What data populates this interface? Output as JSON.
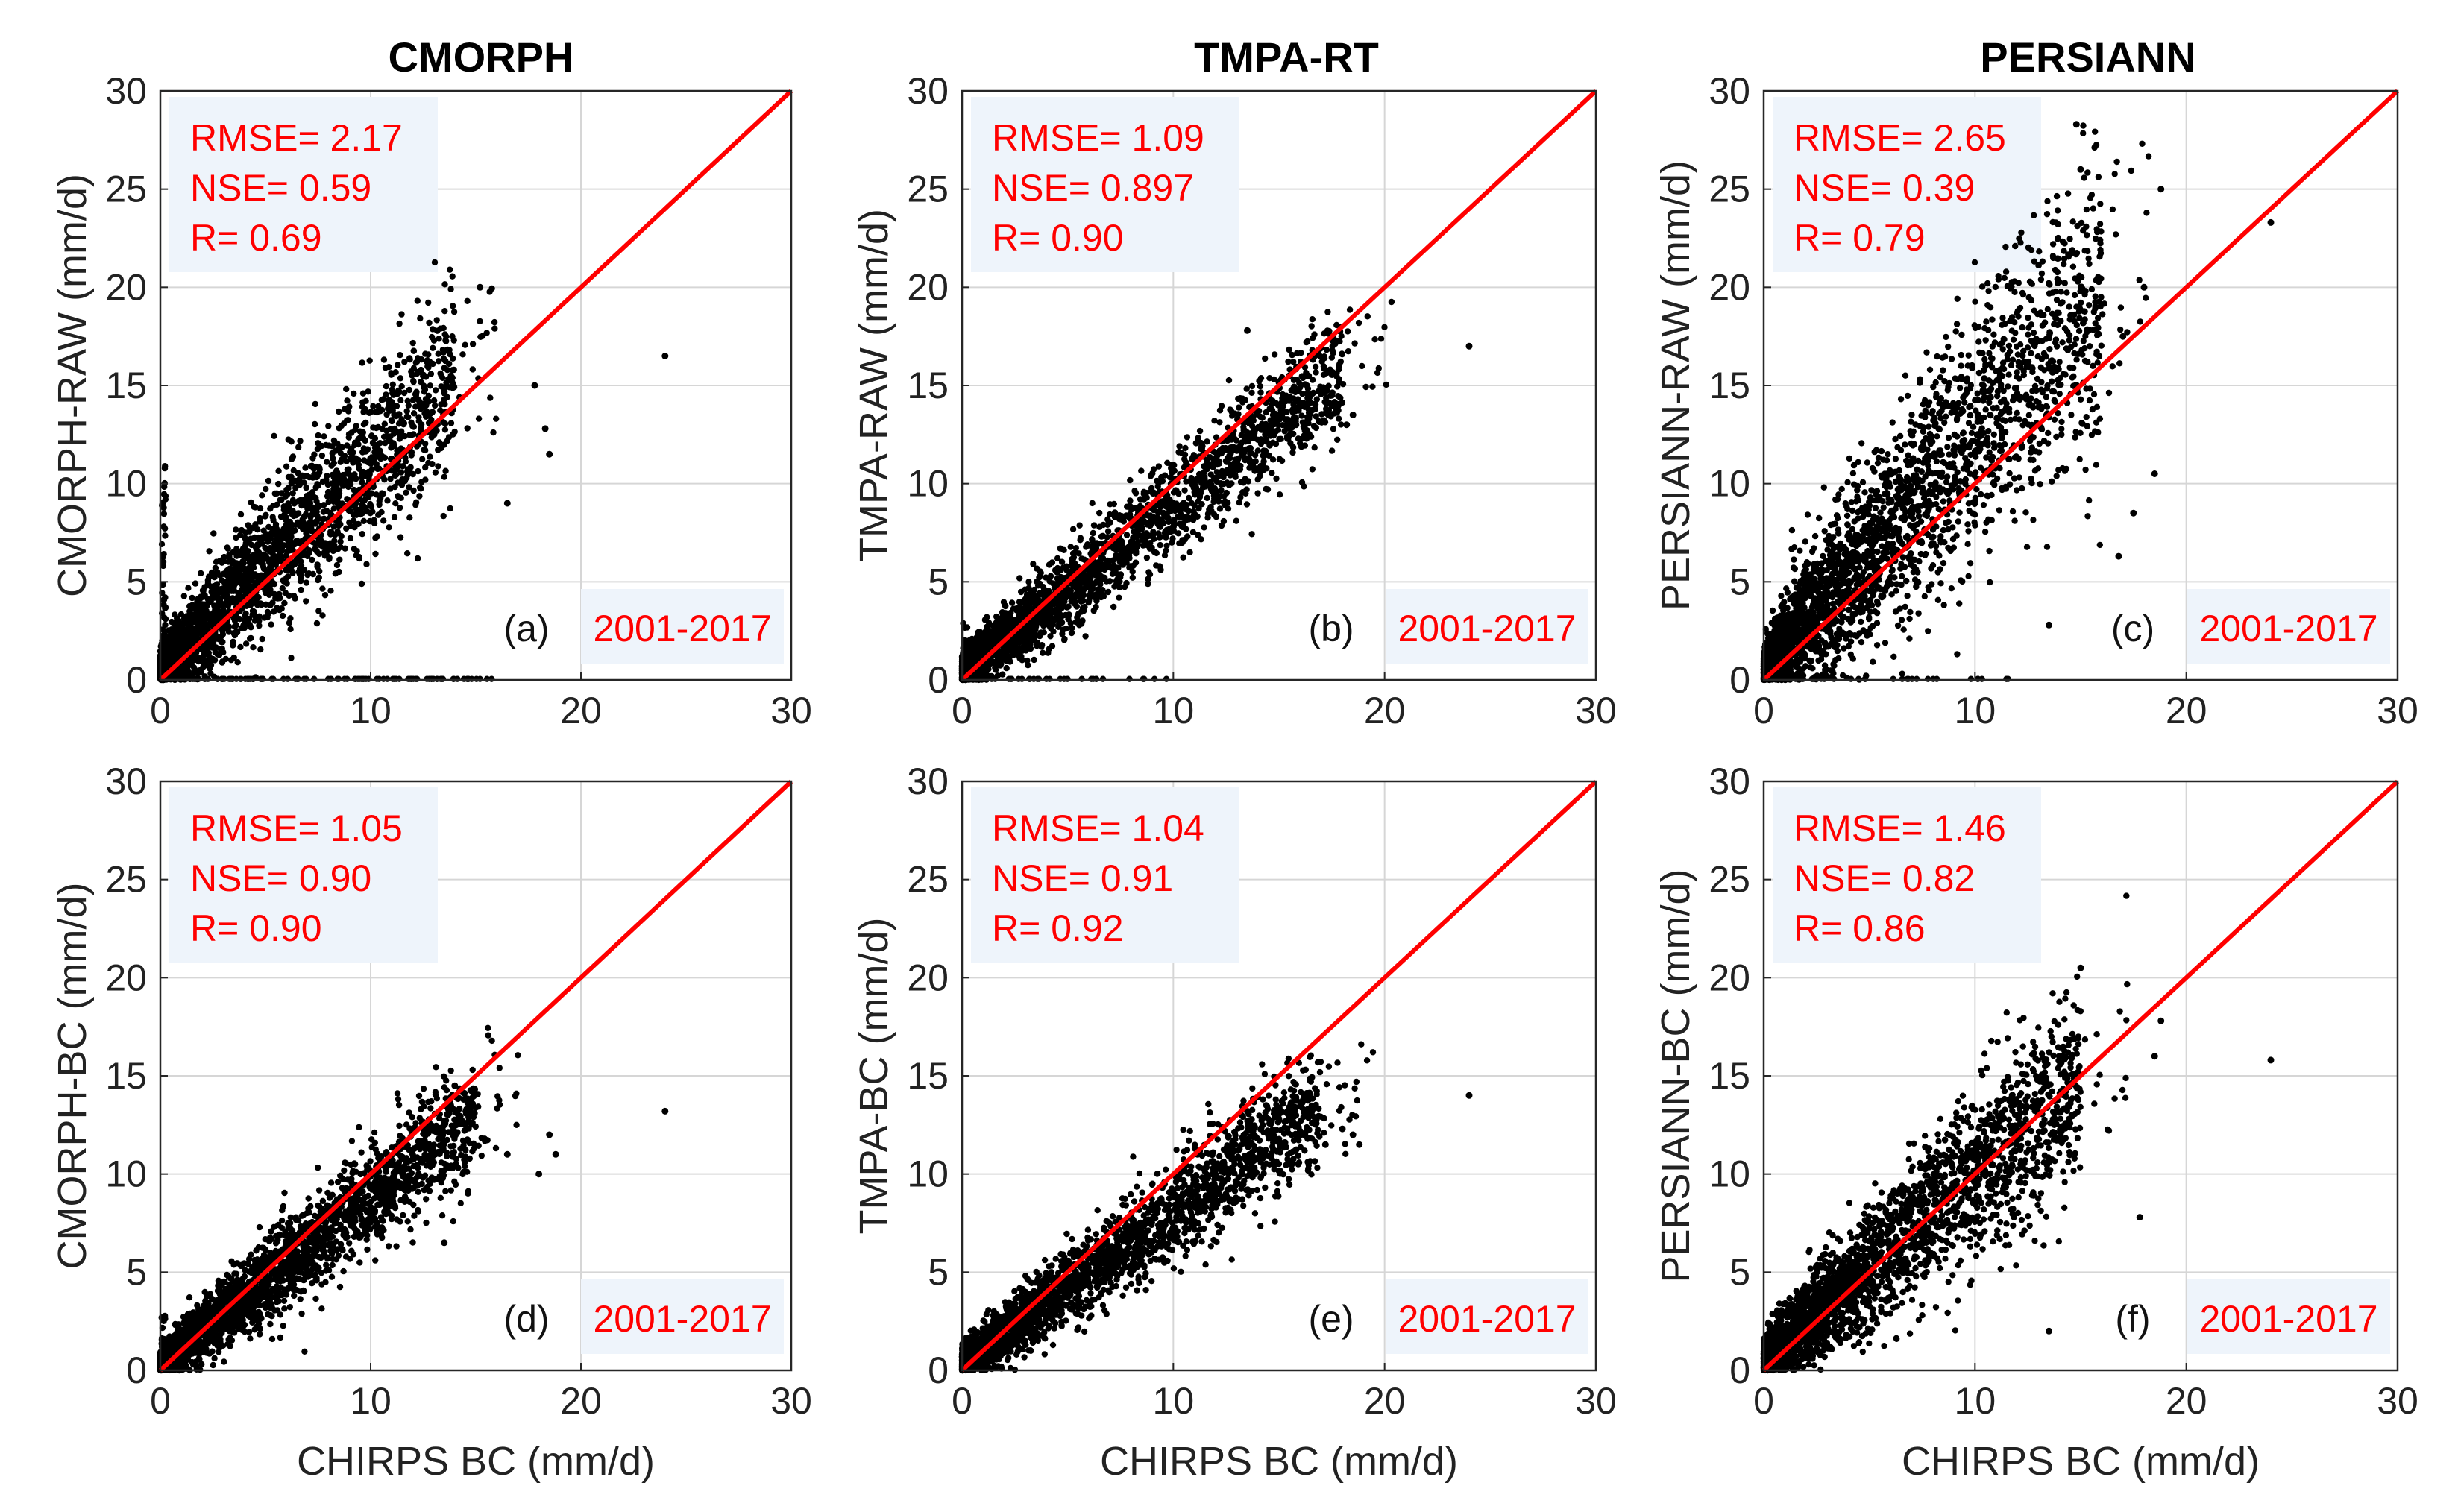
{
  "figure": {
    "columns": [
      "CMORPH",
      "TMPA-RT",
      "PERSIANN"
    ]
  },
  "colors": {
    "points": "#000000",
    "one_to_one": "#ff0000",
    "stats_text": "#ff0000",
    "stats_box": "#eef4fb",
    "grid": "#d6d6d6"
  },
  "chart_data": [
    {
      "type": "scatter",
      "panel": "(a)",
      "column_title": "CMORPH",
      "xlabel": "",
      "ylabel": "CMORPH-RAW (mm/d)",
      "xlim": [
        0,
        30
      ],
      "ylim": [
        0,
        30
      ],
      "xticks": [
        0,
        10,
        20,
        30
      ],
      "yticks": [
        0,
        5,
        10,
        15,
        20,
        25,
        30
      ],
      "stats": [
        "RMSE= 2.17",
        "NSE= 0.59",
        "R= 0.69"
      ],
      "period": "2001-2017",
      "one_to_one_line": true,
      "cloud": {
        "slope": 1.05,
        "intercept": 0.6,
        "spread": 1.9,
        "xmax": 14,
        "n": 2600
      },
      "zero_line": {
        "xmax": 16,
        "n": 120
      },
      "vertical_at_zero": {
        "ymax": 11,
        "n": 60
      },
      "outliers": [
        [
          24,
          16.5
        ],
        [
          18.5,
          11.5
        ],
        [
          18.3,
          12.8
        ],
        [
          17.8,
          15
        ],
        [
          16.5,
          9
        ],
        [
          15.2,
          20
        ]
      ]
    },
    {
      "type": "scatter",
      "panel": "(b)",
      "column_title": "TMPA-RT",
      "xlabel": "",
      "ylabel": "TMPA-RAW (mm/d)",
      "xlim": [
        0,
        30
      ],
      "ylim": [
        0,
        30
      ],
      "xticks": [
        0,
        10,
        20,
        30
      ],
      "yticks": [
        0,
        5,
        10,
        15,
        20,
        25,
        30
      ],
      "stats": [
        "RMSE= 1.09",
        "NSE= 0.897",
        "R= 0.90"
      ],
      "period": "2001-2017",
      "one_to_one_line": true,
      "cloud": {
        "slope": 0.85,
        "intercept": 0.4,
        "spread": 1.1,
        "xmax": 18,
        "n": 2600
      },
      "zero_line": {
        "xmax": 10,
        "n": 40
      },
      "vertical_at_zero": {
        "ymax": 3,
        "n": 20
      },
      "outliers": [
        [
          24,
          17
        ],
        [
          18.5,
          13.5
        ],
        [
          18.2,
          13
        ],
        [
          17.5,
          14.5
        ],
        [
          13.5,
          17.8
        ],
        [
          15.5,
          15.5
        ]
      ]
    },
    {
      "type": "scatter",
      "panel": "(c)",
      "column_title": "PERSIANN",
      "xlabel": "",
      "ylabel": "PERSIANN-RAW (mm/d)",
      "xlim": [
        0,
        30
      ],
      "ylim": [
        0,
        30
      ],
      "xticks": [
        0,
        10,
        20,
        30
      ],
      "yticks": [
        0,
        5,
        10,
        15,
        20,
        25,
        30
      ],
      "stats": [
        "RMSE= 2.65",
        "NSE= 0.39",
        "R= 0.79"
      ],
      "period": "2001-2017",
      "one_to_one_line": true,
      "cloud": {
        "slope": 1.2,
        "intercept": 0.5,
        "spread": 3.0,
        "xmax": 16,
        "n": 2900
      },
      "zero_line": {
        "xmax": 12,
        "n": 40
      },
      "vertical_at_zero": {
        "ymax": 3,
        "n": 20
      },
      "outliers": [
        [
          24,
          23.3
        ],
        [
          18.8,
          25
        ],
        [
          18,
          20
        ],
        [
          17,
          17.5
        ],
        [
          18.5,
          10.5
        ],
        [
          16.8,
          6.3
        ],
        [
          17.5,
          8.5
        ],
        [
          13.5,
          2.8
        ],
        [
          14.8,
          28.3
        ],
        [
          15,
          26
        ]
      ]
    },
    {
      "type": "scatter",
      "panel": "(d)",
      "column_title": "",
      "xlabel": "CHIRPS BC (mm/d)",
      "ylabel": "CMORPH-BC (mm/d)",
      "xlim": [
        0,
        30
      ],
      "ylim": [
        0,
        30
      ],
      "xticks": [
        0,
        10,
        20,
        30
      ],
      "yticks": [
        0,
        5,
        10,
        15,
        20,
        25,
        30
      ],
      "stats": [
        "RMSE= 1.05",
        "NSE= 0.90",
        "R= 0.90"
      ],
      "period": "2001-2017",
      "one_to_one_line": true,
      "cloud": {
        "slope": 0.85,
        "intercept": 0.3,
        "spread": 1.05,
        "xmax": 15,
        "n": 2600
      },
      "zero_line": {
        "xmax": 0,
        "n": 0
      },
      "vertical_at_zero": {
        "ymax": 3,
        "n": 25
      },
      "outliers": [
        [
          24,
          13.2
        ],
        [
          18.8,
          11
        ],
        [
          18.5,
          12
        ],
        [
          18,
          10
        ],
        [
          16.5,
          11
        ],
        [
          14,
          14.5
        ],
        [
          13.5,
          6.5
        ]
      ]
    },
    {
      "type": "scatter",
      "panel": "(e)",
      "column_title": "",
      "xlabel": "CHIRPS BC (mm/d)",
      "ylabel": "TMPA-BC (mm/d)",
      "xlim": [
        0,
        30
      ],
      "ylim": [
        0,
        30
      ],
      "xticks": [
        0,
        10,
        20,
        30
      ],
      "yticks": [
        0,
        5,
        10,
        15,
        20,
        25,
        30
      ],
      "stats": [
        "RMSE= 1.04",
        "NSE= 0.91",
        "R= 0.92"
      ],
      "period": "2001-2017",
      "one_to_one_line": true,
      "cloud": {
        "slope": 0.78,
        "intercept": 0.3,
        "spread": 0.95,
        "xmax": 17,
        "n": 2600
      },
      "zero_line": {
        "xmax": 0,
        "n": 0
      },
      "vertical_at_zero": {
        "ymax": 2,
        "n": 15
      },
      "outliers": [
        [
          24,
          14
        ],
        [
          18.8,
          11.5
        ],
        [
          18.5,
          12
        ],
        [
          18,
          12.3
        ],
        [
          17.2,
          11.5
        ],
        [
          13.5,
          13.2
        ]
      ]
    },
    {
      "type": "scatter",
      "panel": "(f)",
      "column_title": "",
      "xlabel": "CHIRPS BC (mm/d)",
      "ylabel": "PERSIANN-BC (mm/d)",
      "xlim": [
        0,
        30
      ],
      "ylim": [
        0,
        30
      ],
      "xticks": [
        0,
        10,
        20,
        30
      ],
      "yticks": [
        0,
        5,
        10,
        15,
        20,
        25,
        30
      ],
      "stats": [
        "RMSE= 1.46",
        "NSE= 0.82",
        "R= 0.86"
      ],
      "period": "2001-2017",
      "one_to_one_line": true,
      "cloud": {
        "slope": 0.95,
        "intercept": 0.5,
        "spread": 1.9,
        "xmax": 15,
        "n": 2700
      },
      "zero_line": {
        "xmax": 0,
        "n": 0
      },
      "vertical_at_zero": {
        "ymax": 2,
        "n": 15
      },
      "outliers": [
        [
          24,
          15.8
        ],
        [
          18.8,
          17.8
        ],
        [
          18.5,
          16
        ],
        [
          17.8,
          7.8
        ],
        [
          15,
          20.5
        ],
        [
          13.5,
          2
        ]
      ]
    }
  ]
}
